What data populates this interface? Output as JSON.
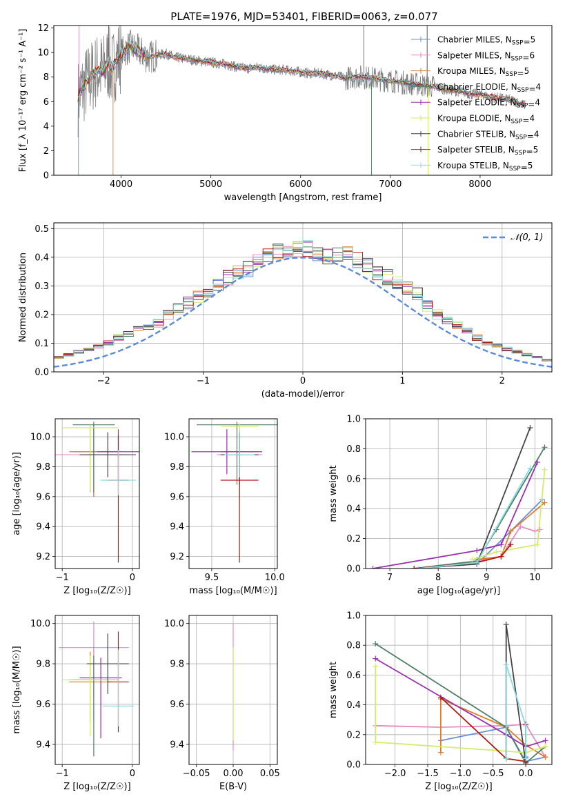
{
  "colors": [
    "#6a91d8",
    "#e68bbf",
    "#e07b2a",
    "#4f7f62",
    "#9a2fb0",
    "#d2ec6b",
    "#444444",
    "#b51a15",
    "#85dbe0"
  ],
  "spectrum_color": "#7f7f7f",
  "normal_color": "#5b8ad6",
  "chart_data": [
    {
      "type": "line",
      "title": "PLATE=1976, MJD=53401, FIBERID=0063, z=0.077",
      "xlabel": "wavelength [Angstrom, rest frame]",
      "ylabel": "Flux [f_λ 10⁻¹⁷ erg cm⁻² s⁻¹ A⁻¹]",
      "xlim": [
        3250,
        8800
      ],
      "ylim": [
        0,
        12.2
      ],
      "xticks": [
        "4000",
        "5000",
        "6000",
        "7000",
        "8000"
      ],
      "yticks": [
        "0",
        "2",
        "4",
        "6",
        "8",
        "10",
        "12"
      ],
      "legend_placement": "top-right",
      "legend": [
        {
          "name": "Chabrier MILES",
          "nssp": "5"
        },
        {
          "name": "Salpeter MILES",
          "nssp": "6"
        },
        {
          "name": "Kroupa MILES",
          "nssp": "5"
        },
        {
          "name": "Chabrier ELODIE",
          "nssp": "4"
        },
        {
          "name": "Salpeter ELODIE",
          "nssp": "4"
        },
        {
          "name": "Kroupa ELODIE",
          "nssp": "4"
        },
        {
          "name": "Chabrier STELIB",
          "nssp": "4"
        },
        {
          "name": "Salpeter STELIB",
          "nssp": "5"
        },
        {
          "name": "Kroupa STELIB",
          "nssp": "5"
        }
      ],
      "continuum": {
        "x": [
          3520,
          3560,
          3650,
          3700,
          3750,
          3800,
          3850,
          3900,
          3950,
          4000,
          4050,
          4100,
          4200,
          4300,
          4400,
          4500,
          4600,
          4700,
          4800,
          4900,
          5000,
          5100,
          5200,
          5300,
          5400,
          5500,
          5600,
          5700,
          5800,
          5900,
          6000,
          6100,
          6200,
          6300,
          6400,
          6500,
          6600,
          6700,
          6800,
          6900,
          7000,
          7100,
          7200,
          7300,
          7400,
          7500,
          7600,
          7700,
          7800,
          7900,
          8000,
          8100,
          8200,
          8300,
          8400,
          8500
        ],
        "y": [
          6.3,
          7.0,
          7.8,
          8.3,
          8.6,
          8.4,
          9.2,
          8.6,
          9.4,
          9.9,
          10.2,
          10.5,
          10.1,
          9.6,
          9.8,
          9.9,
          9.6,
          9.5,
          9.4,
          9.3,
          9.2,
          9.1,
          9.0,
          8.8,
          8.7,
          8.8,
          8.7,
          8.6,
          8.6,
          8.5,
          8.4,
          8.3,
          8.3,
          8.2,
          8.1,
          7.9,
          8.0,
          8.0,
          7.9,
          7.8,
          7.7,
          7.6,
          7.5,
          7.4,
          7.3,
          7.2,
          7.0,
          6.9,
          6.8,
          6.6,
          6.6,
          6.4,
          6.3,
          6.2,
          6.0,
          5.7
        ]
      }
    },
    {
      "type": "histogram",
      "xlabel": "(data-model)/error",
      "ylabel": "Normed distribution",
      "xlim": [
        -2.5,
        2.5
      ],
      "ylim": [
        0,
        0.52
      ],
      "xticks": [
        "−2",
        "−1",
        "0",
        "1",
        "2"
      ],
      "yticks": [
        "0.0",
        "0.1",
        "0.2",
        "0.3",
        "0.4",
        "0.5"
      ],
      "bin_width": 0.1,
      "reference_curve": "N(0,1)",
      "legend_label": "𝒩(0, 1)",
      "legend_placement": "top-right",
      "series_base": [
        0.03,
        0.03,
        0.03,
        0.04,
        0.04,
        0.05,
        0.06,
        0.07,
        0.08,
        0.09,
        0.1,
        0.12,
        0.13,
        0.15,
        0.16,
        0.17,
        0.2,
        0.22,
        0.24,
        0.26,
        0.28,
        0.3,
        0.33,
        0.35,
        0.36,
        0.39,
        0.4,
        0.42,
        0.41,
        0.43,
        0.43,
        0.41,
        0.4,
        0.41,
        0.41,
        0.39,
        0.37,
        0.35,
        0.33,
        0.31,
        0.29,
        0.27,
        0.23,
        0.2,
        0.18,
        0.16,
        0.14,
        0.12,
        0.1,
        0.09,
        0.08,
        0.07,
        0.06,
        0.05,
        0.04,
        0.03,
        0.03,
        0.02,
        0.02,
        0.02
      ]
    },
    {
      "type": "errorbar",
      "xlabel": "Z [log₁₀(Z/Z☉)]",
      "ylabel": "age  [log₁₀(age/yr)]",
      "xlim": [
        -1.1,
        0.1
      ],
      "ylim": [
        9.12,
        10.12
      ],
      "xticks": [
        "−1",
        "0"
      ],
      "yticks": [
        "9.2",
        "9.4",
        "9.6",
        "9.8",
        "10.0"
      ],
      "points": [
        {
          "x": -0.55,
          "y": 9.9,
          "xerr": 0.35,
          "yerr_lo": 0.3,
          "yerr_hi": 0.18
        },
        {
          "x": -0.6,
          "y": 9.88,
          "xerr": 0.5,
          "yerr_lo": 0.25,
          "yerr_hi": 0.2
        },
        {
          "x": -0.55,
          "y": 9.9,
          "xerr": 0.3,
          "yerr_lo": 0.3,
          "yerr_hi": 0.18
        },
        {
          "x": -0.55,
          "y": 10.08,
          "xerr": 0.3,
          "yerr_lo": 0.45,
          "yerr_hi": 0.02
        },
        {
          "x": -0.2,
          "y": 9.9,
          "xerr": 0.3,
          "yerr_lo": 0.2,
          "yerr_hi": 0.15
        },
        {
          "x": -0.6,
          "y": 10.06,
          "xerr": 0.4,
          "yerr_lo": 0.42,
          "yerr_hi": 0.02
        },
        {
          "x": -0.35,
          "y": 9.88,
          "xerr": 0.4,
          "yerr_lo": 0.15,
          "yerr_hi": 0.15
        },
        {
          "x": -0.2,
          "y": 9.71,
          "xerr": 0.15,
          "yerr_lo": 0.55,
          "yerr_hi": 0.3
        },
        {
          "x": -0.2,
          "y": 9.71,
          "xerr": 0.25,
          "yerr_lo": 0.1,
          "yerr_hi": 0.2
        }
      ]
    },
    {
      "type": "errorbar",
      "xlabel": "mass [log₁₀(M/M☉)]",
      "ylabel": "",
      "xlim": [
        9.32,
        10.02
      ],
      "ylim": [
        9.12,
        10.12
      ],
      "xticks": [
        "9.5",
        "10.0"
      ],
      "yticks": [
        "9.2",
        "9.4",
        "9.6",
        "9.8",
        "10.0"
      ],
      "points": [
        {
          "x": 9.72,
          "y": 9.9,
          "xerr": 0.12,
          "yerr_lo": 0.25,
          "yerr_hi": 0.18
        },
        {
          "x": 9.72,
          "y": 9.88,
          "xerr": 0.18,
          "yerr_lo": 0.3,
          "yerr_hi": 0.15
        },
        {
          "x": 9.72,
          "y": 9.9,
          "xerr": 0.15,
          "yerr_lo": 0.28,
          "yerr_hi": 0.15
        },
        {
          "x": 9.7,
          "y": 10.08,
          "xerr": 0.32,
          "yerr_lo": 0.4,
          "yerr_hi": 0.02
        },
        {
          "x": 9.62,
          "y": 9.9,
          "xerr": 0.28,
          "yerr_lo": 0.15,
          "yerr_hi": 0.15
        },
        {
          "x": 9.72,
          "y": 10.07,
          "xerr": 0.15,
          "yerr_lo": 0.45,
          "yerr_hi": 0.02
        },
        {
          "x": 9.72,
          "y": 9.88,
          "xerr": 0.15,
          "yerr_lo": 0.2,
          "yerr_hi": 0.15
        },
        {
          "x": 9.72,
          "y": 9.71,
          "xerr": 0.15,
          "yerr_lo": 0.55,
          "yerr_hi": 0.3
        },
        {
          "x": 9.72,
          "y": 9.88,
          "xerr": 0.12,
          "yerr_lo": 0.15,
          "yerr_hi": 0.15
        }
      ]
    },
    {
      "type": "line",
      "xlabel": "age  [log₁₀(age/yr)]",
      "ylabel": "mass weight",
      "xlim": [
        6.5,
        10.35
      ],
      "ylim": [
        0,
        1.0
      ],
      "xticks": [
        "7",
        "8",
        "9",
        "10"
      ],
      "yticks": [
        "0.0",
        "0.2",
        "0.4",
        "0.6",
        "0.8",
        "1.0"
      ],
      "series": [
        {
          "x": [
            7.5,
            8.8,
            9.5,
            10.15
          ],
          "y": [
            0.0,
            0.03,
            0.25,
            0.46
          ]
        },
        {
          "x": [
            8.8,
            9.3,
            9.7,
            10.0,
            10.1
          ],
          "y": [
            0.05,
            0.08,
            0.28,
            0.25,
            0.26
          ]
        },
        {
          "x": [
            8.8,
            9.3,
            9.5,
            10.2
          ],
          "y": [
            0.06,
            0.08,
            0.25,
            0.44
          ]
        },
        {
          "x": [
            7.5,
            8.8,
            9.2,
            10.2
          ],
          "y": [
            0.0,
            0.05,
            0.26,
            0.81
          ]
        },
        {
          "x": [
            6.65,
            8.8,
            9.3,
            10.05
          ],
          "y": [
            0.0,
            0.12,
            0.16,
            0.71
          ]
        },
        {
          "x": [
            8.7,
            9.2,
            10.05,
            10.2
          ],
          "y": [
            0.06,
            0.11,
            0.16,
            0.66
          ]
        },
        {
          "x": [
            7.5,
            8.8,
            9.9
          ],
          "y": [
            0.0,
            0.03,
            0.94
          ]
        },
        {
          "x": [
            7.5,
            8.8,
            9.3,
            9.5
          ],
          "y": [
            0.0,
            0.04,
            0.08,
            0.16
          ]
        },
        {
          "x": [
            7.6,
            8.8,
            9.9
          ],
          "y": [
            0.0,
            0.04,
            0.67
          ]
        }
      ]
    },
    {
      "type": "errorbar",
      "xlabel": "Z [log₁₀(Z/Z☉)]",
      "ylabel": "mass [log₁₀(M/M☉)]",
      "xlim": [
        -1.1,
        0.1
      ],
      "ylim": [
        9.3,
        10.04
      ],
      "xticks": [
        "−1",
        "0"
      ],
      "yticks": [
        "9.4",
        "9.6",
        "9.8",
        "10.0"
      ],
      "points": [
        {
          "x": -0.55,
          "y": 9.72,
          "xerr": 0.3,
          "yerr_lo": 0.2,
          "yerr_hi": 0.17
        },
        {
          "x": -0.55,
          "y": 9.88,
          "xerr": 0.5,
          "yerr_lo": 0.25,
          "yerr_hi": 0.13
        },
        {
          "x": -0.6,
          "y": 9.71,
          "xerr": 0.3,
          "yerr_lo": 0.2,
          "yerr_hi": 0.15
        },
        {
          "x": -0.55,
          "y": 9.72,
          "xerr": 0.35,
          "yerr_lo": 0.38,
          "yerr_hi": 0.12
        },
        {
          "x": -0.45,
          "y": 9.73,
          "xerr": 0.3,
          "yerr_lo": 0.3,
          "yerr_hi": 0.1
        },
        {
          "x": -0.6,
          "y": 9.72,
          "xerr": 0.4,
          "yerr_lo": 0.28,
          "yerr_hi": 0.12
        },
        {
          "x": -0.35,
          "y": 9.8,
          "xerr": 0.3,
          "yerr_lo": 0.15,
          "yerr_hi": 0.15
        },
        {
          "x": -0.2,
          "y": 9.71,
          "xerr": 0.15,
          "yerr_lo": 0.25,
          "yerr_hi": 0.25
        },
        {
          "x": -0.2,
          "y": 9.59,
          "xerr": 0.22,
          "yerr_lo": 0.1,
          "yerr_hi": 0.28
        }
      ]
    },
    {
      "type": "errorbar",
      "xlabel": "E(B-V)",
      "ylabel": "",
      "xlim": [
        -0.06,
        0.06
      ],
      "ylim": [
        9.3,
        10.04
      ],
      "xticks": [
        "−0.05",
        "0.00",
        "0.05"
      ],
      "yticks": [
        "9.4",
        "9.6",
        "9.8",
        "10.0"
      ],
      "points": [
        {
          "x": 0.0,
          "y": 9.72,
          "xerr": 0.0,
          "yerr_lo": 0.35,
          "yerr_hi": 0.28
        },
        {
          "x": 0.0,
          "y": 9.72,
          "xerr": 0.0,
          "yerr_lo": 0.3,
          "yerr_hi": 0.16
        }
      ]
    },
    {
      "type": "line",
      "xlabel": "Z [log₁₀(Z/Z☉)]",
      "ylabel": "mass weight",
      "xlim": [
        -2.45,
        0.4
      ],
      "ylim": [
        0,
        1.0
      ],
      "xticks": [
        "−2.0",
        "−1.5",
        "−1.0",
        "−0.5",
        "0.0"
      ],
      "yticks": [
        "0.0",
        "0.2",
        "0.4",
        "0.6",
        "0.8",
        "1.0"
      ],
      "series": [
        {
          "x": [
            -1.3,
            -0.3,
            0.0,
            0.3
          ],
          "y": [
            0.16,
            0.25,
            0.02,
            0.05
          ]
        },
        {
          "x": [
            -2.3,
            -1.3,
            -0.3,
            0.0,
            0.3
          ],
          "y": [
            0.26,
            0.25,
            0.26,
            0.27,
            0.05
          ]
        },
        {
          "x": [
            -1.3,
            -1.3,
            -0.3,
            0.0,
            0.3
          ],
          "y": [
            0.08,
            0.44,
            0.25,
            0.13,
            0.05
          ]
        },
        {
          "x": [
            -2.3,
            -0.3,
            0.0,
            0.3
          ],
          "y": [
            0.81,
            0.25,
            0.01,
            0.12
          ]
        },
        {
          "x": [
            -2.3,
            -0.3,
            0.0,
            0.3
          ],
          "y": [
            0.71,
            0.2,
            0.12,
            0.16
          ]
        },
        {
          "x": [
            -2.3,
            -2.3,
            0.0,
            0.3
          ],
          "y": [
            0.66,
            0.15,
            0.08,
            0.12
          ]
        },
        {
          "x": [
            -0.3,
            -0.3,
            0.0,
            0.0
          ],
          "y": [
            0.04,
            0.94,
            0.01,
            0.05
          ]
        },
        {
          "x": [
            -1.3,
            -0.3,
            0.0,
            0.0
          ],
          "y": [
            0.45,
            0.04,
            0.02,
            0.27
          ]
        },
        {
          "x": [
            -0.3,
            -0.3,
            0.0,
            0.0
          ],
          "y": [
            0.04,
            0.67,
            0.26,
            0.04
          ]
        }
      ]
    }
  ]
}
